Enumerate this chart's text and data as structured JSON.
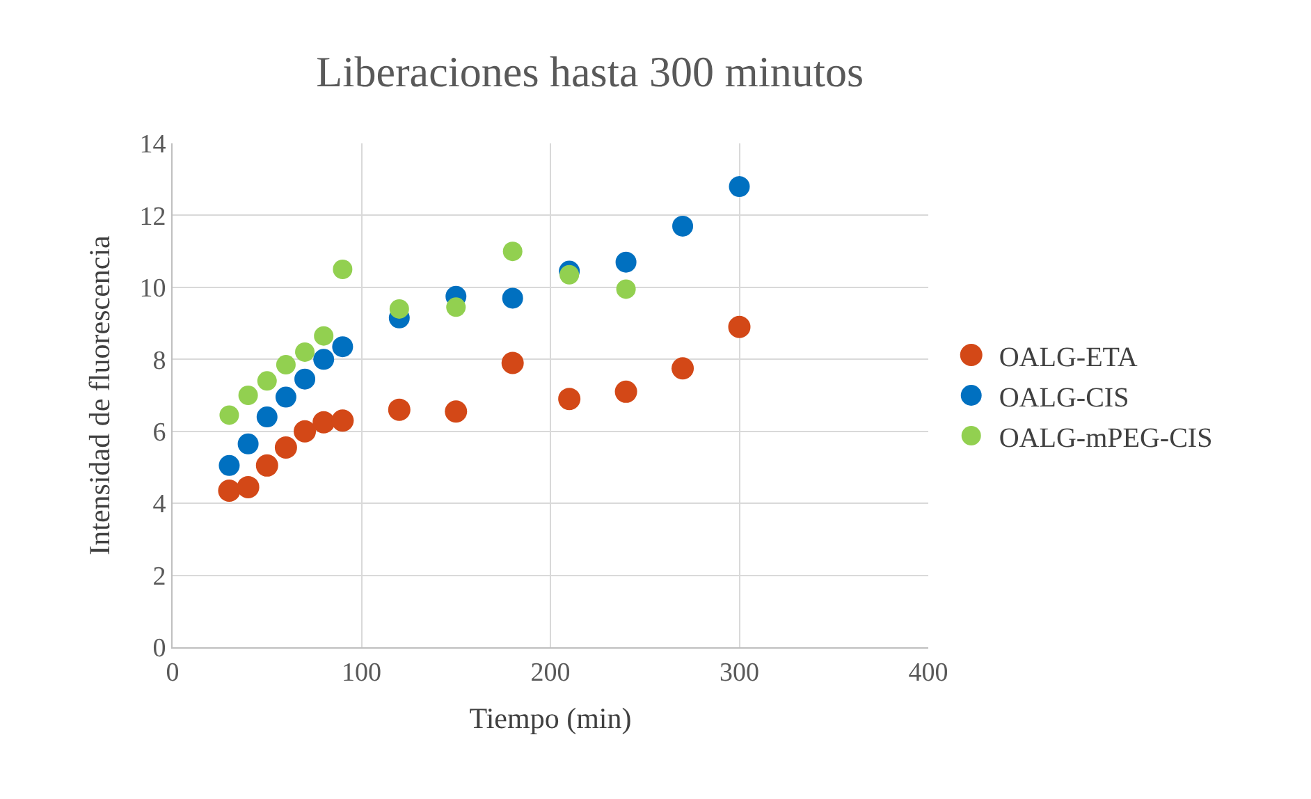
{
  "chart_data": {
    "type": "scatter",
    "title": "Liberaciones hasta 300 minutos",
    "xlabel": "Tiempo (min)",
    "ylabel": "Intensidad de fluorescencia",
    "x": [
      30,
      40,
      50,
      60,
      70,
      80,
      90,
      120,
      150,
      180,
      210,
      240,
      270,
      300
    ],
    "series": [
      {
        "name": "OALG-ETA",
        "color": "#d34817",
        "values": [
          4.35,
          4.45,
          5.05,
          5.55,
          6.0,
          6.25,
          6.3,
          6.6,
          6.55,
          7.9,
          6.9,
          7.1,
          7.75,
          8.9
        ]
      },
      {
        "name": "OALG-CIS",
        "color": "#0070c0",
        "values": [
          5.05,
          5.65,
          6.4,
          6.95,
          7.45,
          8.0,
          8.35,
          9.15,
          9.75,
          9.7,
          10.45,
          10.7,
          11.7,
          12.8
        ]
      },
      {
        "name": "OALG-mPEG-CIS",
        "color": "#92d050",
        "values": [
          6.45,
          7.0,
          7.4,
          7.85,
          8.2,
          8.65,
          10.5,
          9.4,
          9.45,
          11.0,
          10.35,
          9.95,
          null,
          null
        ]
      }
    ],
    "xlim": [
      0,
      400
    ],
    "xticks": [
      0,
      100,
      200,
      300,
      400
    ],
    "ylim": [
      0,
      14
    ],
    "yticks": [
      0,
      2,
      4,
      6,
      8,
      10,
      12,
      14
    ],
    "grid": true,
    "legend": "right",
    "marker": "circle"
  }
}
